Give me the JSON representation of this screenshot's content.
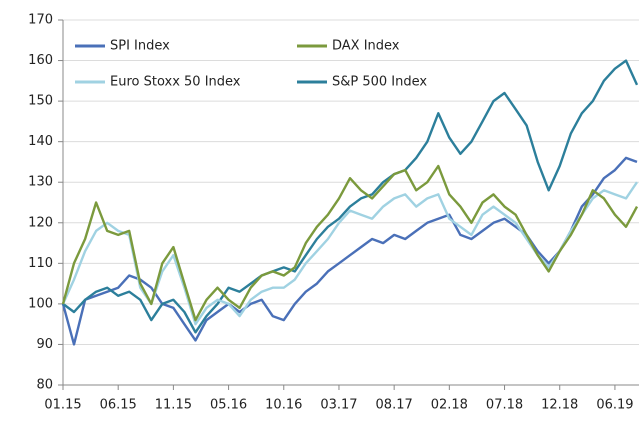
{
  "chart_data": {
    "type": "line",
    "categories": [
      "01.15",
      null,
      null,
      null,
      null,
      "06.15",
      null,
      null,
      null,
      null,
      "11.15",
      null,
      null,
      null,
      null,
      "05.16",
      null,
      null,
      null,
      null,
      "10.16",
      null,
      null,
      null,
      null,
      "03.17",
      null,
      null,
      null,
      null,
      "08.17",
      null,
      null,
      null,
      null,
      "02.18",
      null,
      null,
      null,
      null,
      "07.18",
      null,
      null,
      null,
      null,
      "12.18",
      null,
      null,
      null,
      null,
      "06.19",
      null,
      null
    ],
    "series": [
      {
        "name": "SPI Index",
        "color": "#4a70b8",
        "values": [
          100,
          90,
          101,
          102,
          103,
          104,
          107,
          106,
          104,
          100,
          99,
          95,
          91,
          96,
          98,
          100,
          98,
          100,
          101,
          97,
          96,
          100,
          103,
          105,
          108,
          110,
          112,
          114,
          116,
          115,
          117,
          116,
          118,
          120,
          121,
          122,
          117,
          116,
          118,
          120,
          121,
          119,
          117,
          113,
          110,
          113,
          118,
          124,
          127,
          131,
          133,
          136,
          135
        ]
      },
      {
        "name": "DAX Index",
        "color": "#7b9a3d",
        "values": [
          100,
          110,
          116,
          125,
          118,
          117,
          118,
          105,
          100,
          110,
          114,
          105,
          96,
          101,
          104,
          101,
          99,
          104,
          107,
          108,
          107,
          109,
          115,
          119,
          122,
          126,
          131,
          128,
          126,
          129,
          132,
          133,
          128,
          130,
          134,
          127,
          124,
          120,
          125,
          127,
          124,
          122,
          117,
          112,
          108,
          113,
          117,
          122,
          128,
          126,
          122,
          119,
          124
        ]
      },
      {
        "name": "Euro Stoxx 50 Index",
        "color": "#a0d2e2",
        "values": [
          100,
          106,
          113,
          118,
          120,
          118,
          117,
          104,
          100,
          108,
          112,
          104,
          95,
          99,
          101,
          100,
          97,
          101,
          103,
          104,
          104,
          106,
          110,
          113,
          116,
          120,
          123,
          122,
          121,
          124,
          126,
          127,
          124,
          126,
          127,
          121,
          119,
          117,
          122,
          124,
          122,
          120,
          116,
          112,
          109,
          113,
          118,
          122,
          126,
          128,
          127,
          126,
          130
        ]
      },
      {
        "name": "S&P 500 Index",
        "color": "#2c7f9b",
        "values": [
          100,
          98,
          101,
          103,
          104,
          102,
          103,
          101,
          96,
          100,
          101,
          98,
          93,
          97,
          100,
          104,
          103,
          105,
          107,
          108,
          109,
          108,
          112,
          116,
          119,
          121,
          124,
          126,
          127,
          130,
          132,
          133,
          136,
          140,
          147,
          141,
          137,
          140,
          145,
          150,
          152,
          148,
          144,
          135,
          128,
          134,
          142,
          147,
          150,
          155,
          158,
          160,
          154
        ]
      }
    ],
    "ylim": [
      80,
      170
    ],
    "yticks": [
      80,
      90,
      100,
      110,
      120,
      130,
      140,
      150,
      160,
      170
    ],
    "grid": true
  }
}
